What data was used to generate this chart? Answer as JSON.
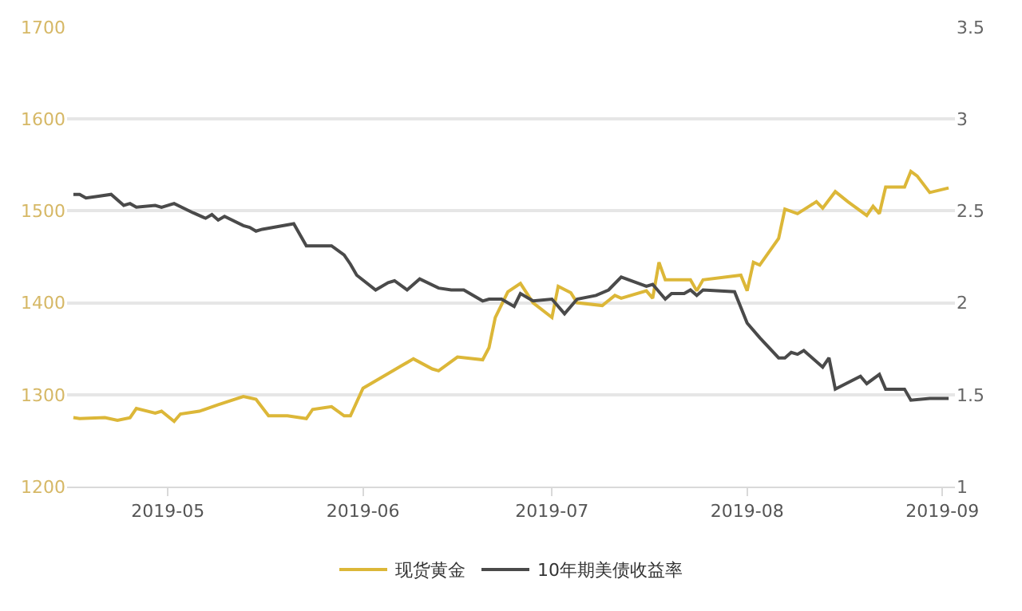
{
  "chart_data": {
    "type": "line",
    "xlim": [
      "2019-04-15",
      "2019-09-03"
    ],
    "xticks": [
      {
        "value": "2019-05-01",
        "label": "2019-05"
      },
      {
        "value": "2019-06-01",
        "label": "2019-06"
      },
      {
        "value": "2019-07-01",
        "label": "2019-07"
      },
      {
        "value": "2019-08-01",
        "label": "2019-08"
      },
      {
        "value": "2019-09-01",
        "label": "2019-09"
      }
    ],
    "ylim": [
      1200,
      1700
    ],
    "yticks": [
      1200,
      1300,
      1400,
      1500,
      1600,
      1700
    ],
    "y2lim": [
      1,
      3.5
    ],
    "y2ticks": [
      1,
      1.5,
      2,
      2.5,
      3,
      3.5
    ],
    "grid": "y",
    "legend": "bottom",
    "series": [
      {
        "name": "现货黄金",
        "color": "#dcb738",
        "x": [
          "2019-04-16",
          "2019-04-17",
          "2019-04-21",
          "2019-04-23",
          "2019-04-25",
          "2019-04-26",
          "2019-04-29",
          "2019-04-30",
          "2019-05-02",
          "2019-05-03",
          "2019-05-06",
          "2019-05-09",
          "2019-05-13",
          "2019-05-15",
          "2019-05-17",
          "2019-05-20",
          "2019-05-23",
          "2019-05-24",
          "2019-05-27",
          "2019-05-29",
          "2019-05-30",
          "2019-06-01",
          "2019-06-05",
          "2019-06-07",
          "2019-06-09",
          "2019-06-12",
          "2019-06-13",
          "2019-06-16",
          "2019-06-20",
          "2019-06-21",
          "2019-06-22",
          "2019-06-24",
          "2019-06-26",
          "2019-06-28",
          "2019-07-01",
          "2019-07-02",
          "2019-07-04",
          "2019-07-05",
          "2019-07-09",
          "2019-07-11",
          "2019-07-12",
          "2019-07-16",
          "2019-07-17",
          "2019-07-18",
          "2019-07-19",
          "2019-07-23",
          "2019-07-24",
          "2019-07-25",
          "2019-07-31",
          "2019-08-01",
          "2019-08-02",
          "2019-08-03",
          "2019-08-06",
          "2019-08-07",
          "2019-08-09",
          "2019-08-12",
          "2019-08-13",
          "2019-08-15",
          "2019-08-17",
          "2019-08-20",
          "2019-08-21",
          "2019-08-22",
          "2019-08-23",
          "2019-08-26",
          "2019-08-27",
          "2019-08-28",
          "2019-08-30",
          "2019-09-02"
        ],
        "values": [
          1275,
          1274,
          1275,
          1272,
          1275,
          1285,
          1280,
          1282,
          1271,
          1279,
          1282,
          1289,
          1298,
          1295,
          1277,
          1277,
          1274,
          1284,
          1287,
          1277,
          1277,
          1307,
          1323,
          1331,
          1339,
          1328,
          1326,
          1341,
          1338,
          1351,
          1384,
          1412,
          1421,
          1400,
          1384,
          1418,
          1411,
          1400,
          1397,
          1408,
          1405,
          1413,
          1405,
          1444,
          1425,
          1425,
          1413,
          1425,
          1430,
          1413,
          1444,
          1441,
          1470,
          1502,
          1497,
          1510,
          1503,
          1521,
          1510,
          1495,
          1505,
          1497,
          1526,
          1526,
          1543,
          1538,
          1520,
          1525
        ]
      },
      {
        "name": "10年期美债收益率",
        "color": "#4a4a4a",
        "axis": "y2",
        "x": [
          "2019-04-16",
          "2019-04-17",
          "2019-04-18",
          "2019-04-20",
          "2019-04-22",
          "2019-04-24",
          "2019-04-25",
          "2019-04-26",
          "2019-04-29",
          "2019-04-30",
          "2019-05-02",
          "2019-05-05",
          "2019-05-07",
          "2019-05-08",
          "2019-05-09",
          "2019-05-10",
          "2019-05-13",
          "2019-05-14",
          "2019-05-15",
          "2019-05-16",
          "2019-05-21",
          "2019-05-23",
          "2019-05-27",
          "2019-05-29",
          "2019-05-30",
          "2019-05-31",
          "2019-06-03",
          "2019-06-05",
          "2019-06-06",
          "2019-06-08",
          "2019-06-10",
          "2019-06-13",
          "2019-06-15",
          "2019-06-17",
          "2019-06-20",
          "2019-06-21",
          "2019-06-23",
          "2019-06-25",
          "2019-06-26",
          "2019-06-28",
          "2019-07-01",
          "2019-07-03",
          "2019-07-05",
          "2019-07-08",
          "2019-07-10",
          "2019-07-12",
          "2019-07-16",
          "2019-07-17",
          "2019-07-19",
          "2019-07-20",
          "2019-07-22",
          "2019-07-23",
          "2019-07-24",
          "2019-07-25",
          "2019-07-30",
          "2019-08-01",
          "2019-08-03",
          "2019-08-06",
          "2019-08-07",
          "2019-08-08",
          "2019-08-09",
          "2019-08-10",
          "2019-08-13",
          "2019-08-14",
          "2019-08-15",
          "2019-08-19",
          "2019-08-20",
          "2019-08-22",
          "2019-08-23",
          "2019-08-26",
          "2019-08-27",
          "2019-08-30",
          "2019-09-02"
        ],
        "values": [
          2.59,
          2.59,
          2.57,
          2.58,
          2.59,
          2.53,
          2.54,
          2.52,
          2.53,
          2.52,
          2.54,
          2.49,
          2.46,
          2.48,
          2.45,
          2.47,
          2.42,
          2.41,
          2.39,
          2.4,
          2.43,
          2.31,
          2.31,
          2.26,
          2.21,
          2.15,
          2.07,
          2.11,
          2.12,
          2.07,
          2.13,
          2.08,
          2.07,
          2.07,
          2.01,
          2.02,
          2.02,
          1.98,
          2.05,
          2.01,
          2.02,
          1.94,
          2.02,
          2.04,
          2.07,
          2.14,
          2.09,
          2.1,
          2.02,
          2.05,
          2.05,
          2.07,
          2.04,
          2.07,
          2.06,
          1.89,
          1.81,
          1.7,
          1.7,
          1.73,
          1.72,
          1.74,
          1.65,
          1.7,
          1.53,
          1.6,
          1.56,
          1.61,
          1.53,
          1.53,
          1.47,
          1.48,
          1.48
        ]
      }
    ]
  }
}
